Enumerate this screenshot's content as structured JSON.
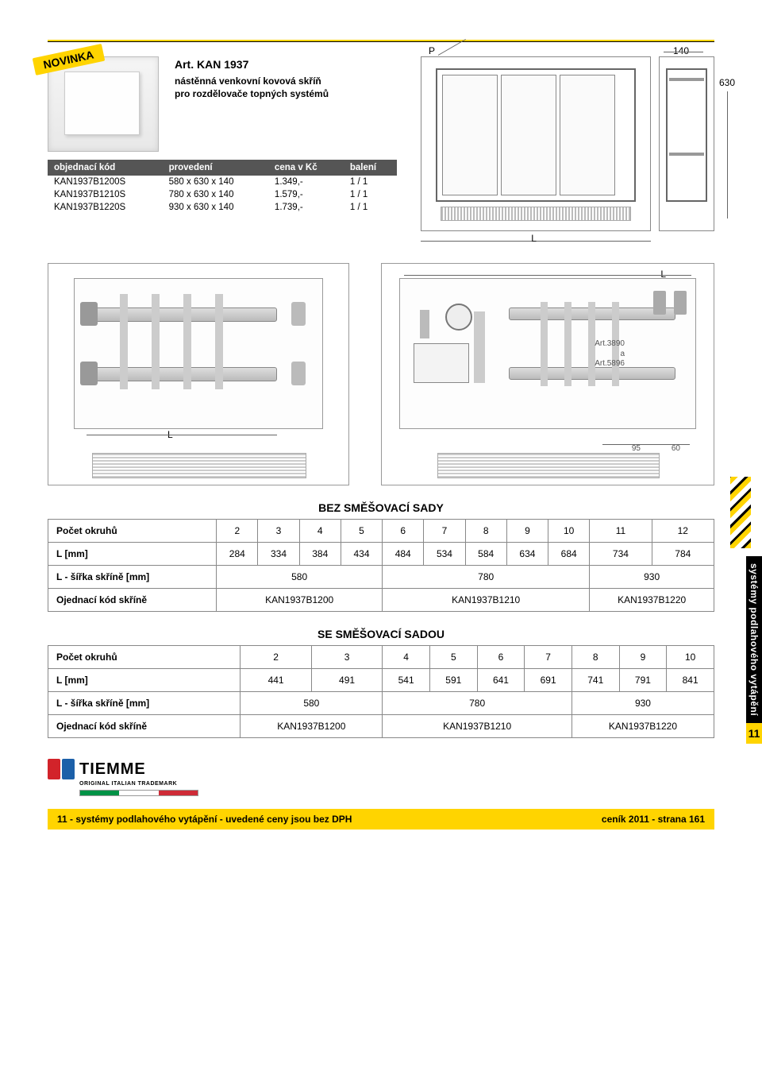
{
  "badge": "NOVINKA",
  "article": {
    "title": "Art. KAN 1937",
    "desc1": "nástěnná venkovní kovová skříň",
    "desc2": "pro rozdělovače topných systémů"
  },
  "spec_table": {
    "headers": [
      "objednací kód",
      "provedení",
      "cena v Kč",
      "balení"
    ],
    "rows": [
      [
        "KAN1937B1200S",
        "580 x 630 x 140",
        "1.349,-",
        "1 / 1"
      ],
      [
        "KAN1937B1210S",
        "780 x 630 x 140",
        "1.579,-",
        "1 / 1"
      ],
      [
        "KAN1937B1220S",
        "930 x 630 x 140",
        "1.739,-",
        "1 / 1"
      ]
    ]
  },
  "top_drawing": {
    "P": "P",
    "width_label": "140",
    "height_label": "630",
    "L_label": "L"
  },
  "mid_drawings": {
    "left_L": "L",
    "right_L": "L",
    "dim1": "95",
    "dim2": "60",
    "art_label1": "Art.3890",
    "art_label2": "Art.5896"
  },
  "side_tab": {
    "label": "systémy podlahového vytápění",
    "chapter": "11"
  },
  "table1": {
    "title": "BEZ SMĚŠOVACÍ SADY",
    "row1_label": "Počet okruhů",
    "row1": [
      "2",
      "3",
      "4",
      "5",
      "6",
      "7",
      "8",
      "9",
      "10",
      "11",
      "12"
    ],
    "row2_label": "L [mm]",
    "row2": [
      "284",
      "334",
      "384",
      "434",
      "484",
      "534",
      "584",
      "634",
      "684",
      "734",
      "784"
    ],
    "row3_label": "L - šířka skříně [mm]",
    "row3": [
      {
        "v": "580",
        "span": 4
      },
      {
        "v": "780",
        "span": 5
      },
      {
        "v": "930",
        "span": 2
      }
    ],
    "row4_label": "Ojednací kód skříně",
    "row4": [
      {
        "v": "KAN1937B1200",
        "span": 4
      },
      {
        "v": "KAN1937B1210",
        "span": 5
      },
      {
        "v": "KAN1937B1220",
        "span": 2
      }
    ]
  },
  "table2": {
    "title": "SE SMĚŠOVACÍ SADOU",
    "row1_label": "Počet okruhů",
    "row1": [
      "2",
      "3",
      "4",
      "5",
      "6",
      "7",
      "8",
      "9",
      "10"
    ],
    "row2_label": "L [mm]",
    "row2": [
      "441",
      "491",
      "541",
      "591",
      "641",
      "691",
      "741",
      "791",
      "841"
    ],
    "row3_label": "L - šířka skříně [mm]",
    "row3": [
      {
        "v": "580",
        "span": 2
      },
      {
        "v": "780",
        "span": 4
      },
      {
        "v": "930",
        "span": 3
      }
    ],
    "row4_label": "Ojednací kód skříně",
    "row4": [
      {
        "v": "KAN1937B1200",
        "span": 2
      },
      {
        "v": "KAN1937B1210",
        "span": 4
      },
      {
        "v": "KAN1937B1220",
        "span": 3
      }
    ]
  },
  "logo": {
    "brand": "TIEMME",
    "sub": "ORIGINAL ITALIAN TRADEMARK"
  },
  "footer": {
    "left": "11 - systémy podlahového vytápění - uvedené ceny jsou bez DPH",
    "right": "ceník 2011 - strana 161"
  },
  "colors": {
    "yellow": "#ffd400",
    "black": "#000000",
    "grey_border": "#888888",
    "header_bg": "#555555"
  }
}
